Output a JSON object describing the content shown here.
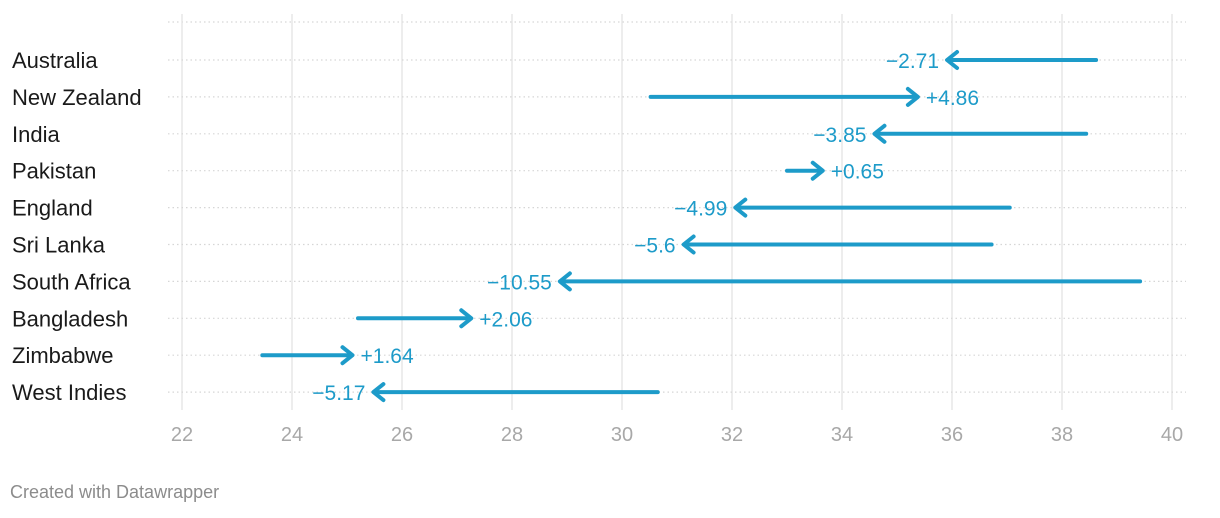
{
  "chart_data": {
    "type": "arrow",
    "title": "",
    "xlabel": "",
    "ylabel": "",
    "xlim": [
      22,
      40
    ],
    "x_ticks": [
      "22",
      "24",
      "26",
      "28",
      "30",
      "32",
      "34",
      "36",
      "38",
      "40"
    ],
    "grid": true,
    "arrow_color": "#1d9bc9",
    "rows": [
      {
        "category": "Australia",
        "start": 38.62,
        "end": 35.91,
        "label": "−2.71"
      },
      {
        "category": "New Zealand",
        "start": 30.52,
        "end": 35.38,
        "label": "+4.86"
      },
      {
        "category": "India",
        "start": 38.44,
        "end": 34.59,
        "label": "−3.85"
      },
      {
        "category": "Pakistan",
        "start": 33.0,
        "end": 33.65,
        "label": "+0.65"
      },
      {
        "category": "England",
        "start": 37.05,
        "end": 32.06,
        "label": "−4.99"
      },
      {
        "category": "Sri Lanka",
        "start": 36.72,
        "end": 31.12,
        "label": "−5.6"
      },
      {
        "category": "South Africa",
        "start": 39.42,
        "end": 28.87,
        "label": "−10.55"
      },
      {
        "category": "Bangladesh",
        "start": 25.2,
        "end": 27.26,
        "label": "+2.06"
      },
      {
        "category": "Zimbabwe",
        "start": 23.46,
        "end": 25.1,
        "label": "+1.64"
      },
      {
        "category": "West Indies",
        "start": 30.65,
        "end": 25.48,
        "label": "−5.17"
      }
    ]
  },
  "footer": {
    "credit": "Created with Datawrapper"
  }
}
